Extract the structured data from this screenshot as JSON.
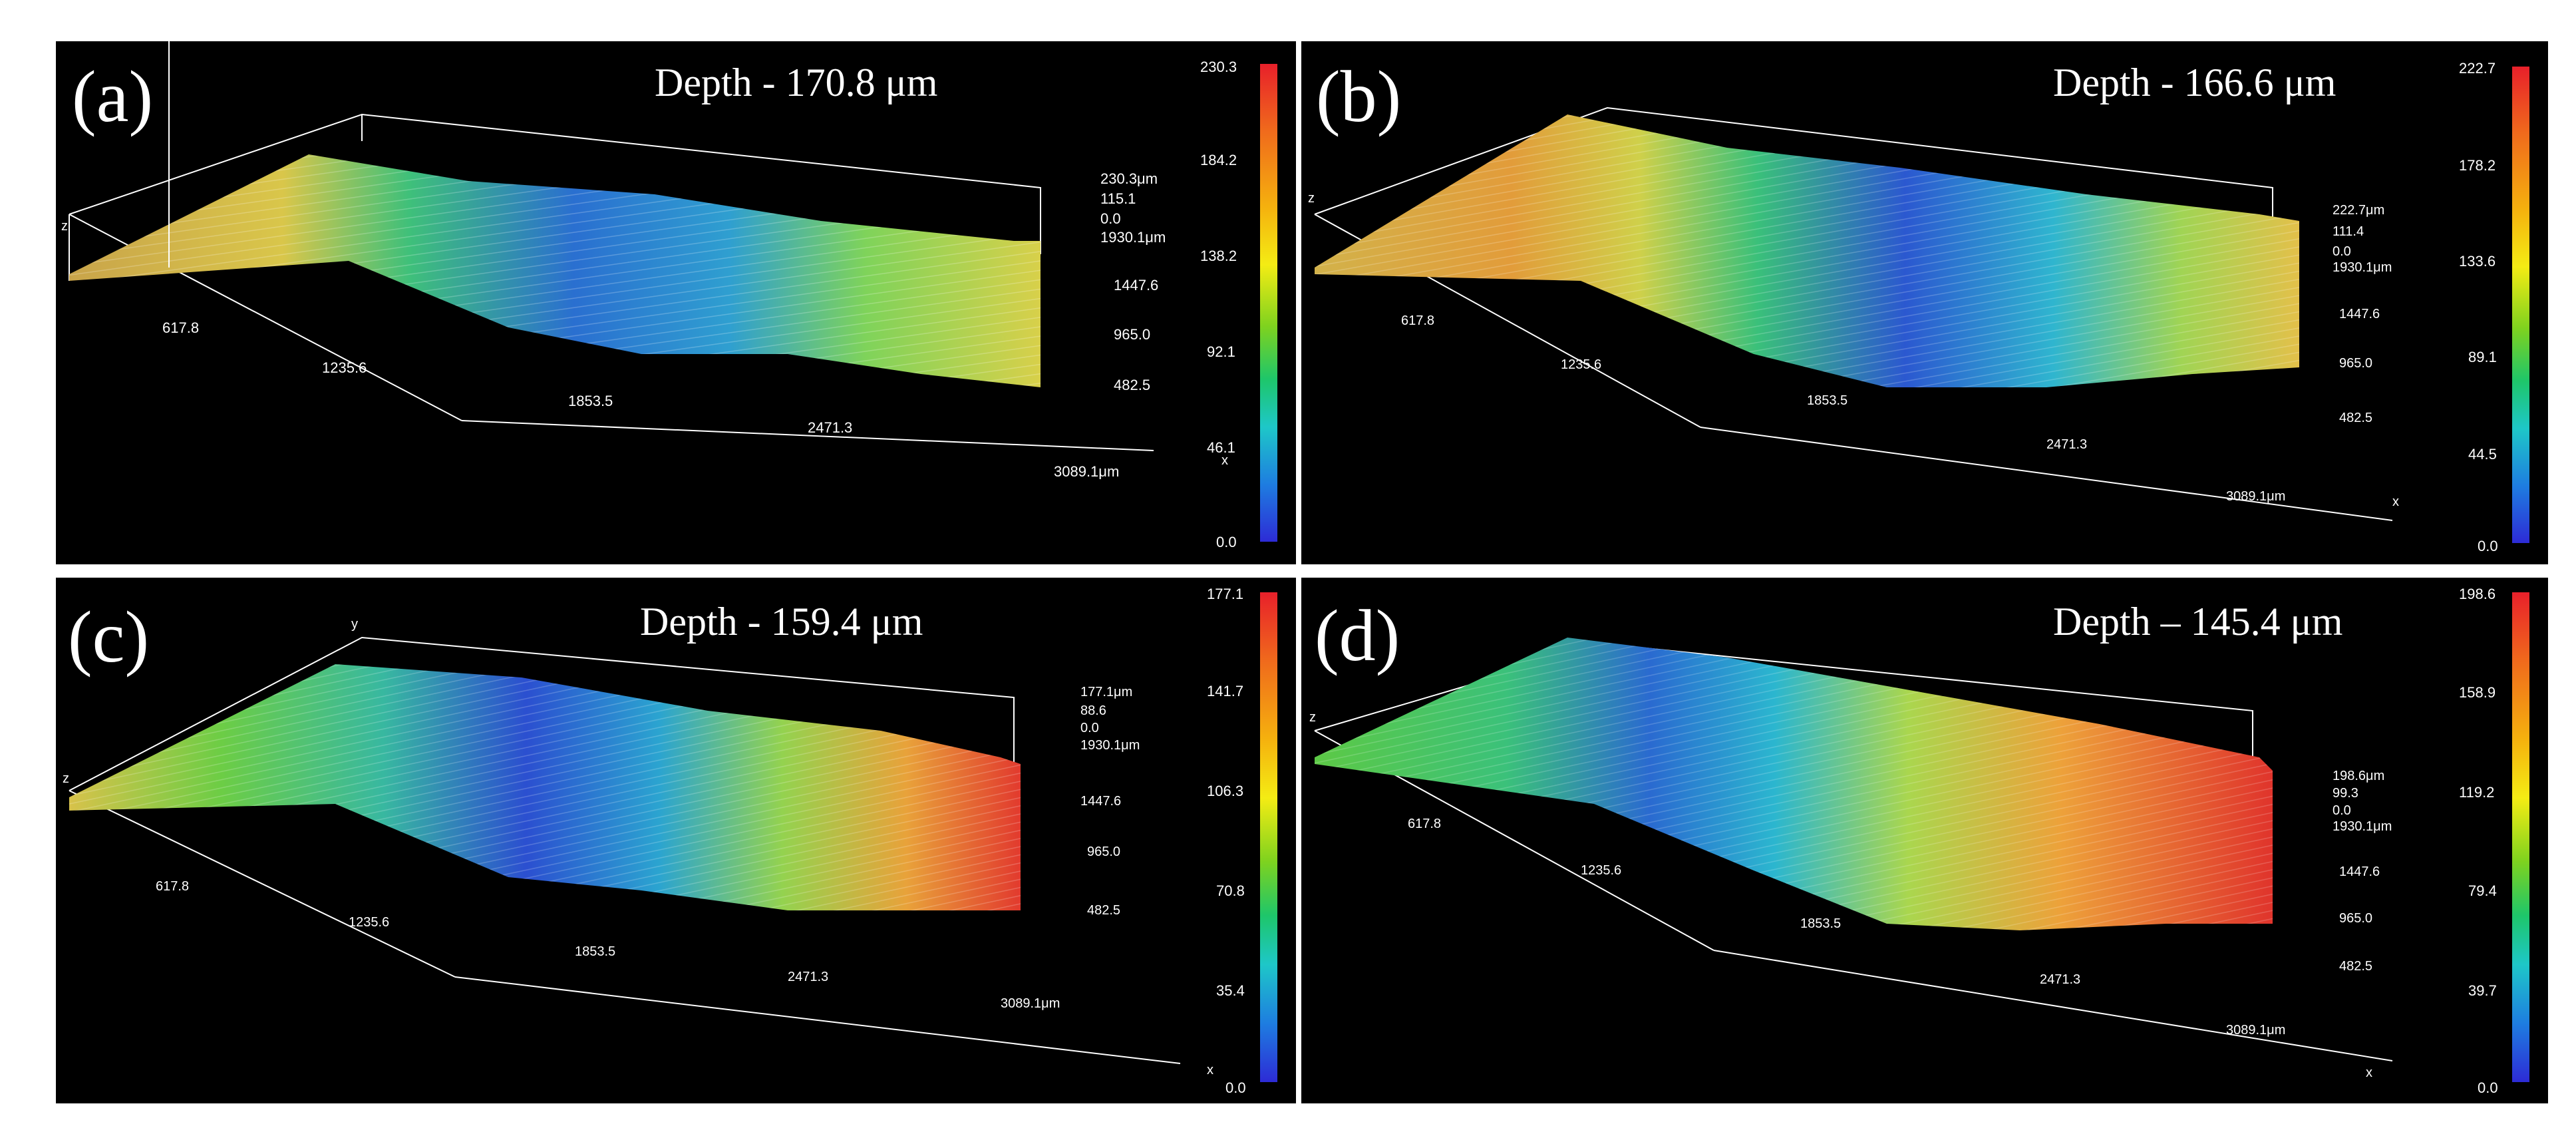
{
  "panels": {
    "a": {
      "label": "(a)",
      "depth": "Depth - 170.8 μm",
      "x_ticks": [
        "617.8",
        "1235.6",
        "1853.5",
        "2471.3",
        "3089.1μm"
      ],
      "y_ticks": [
        "1930.1μm",
        "1447.6",
        "965.0",
        "482.5"
      ],
      "z_ticks": [
        "230.3μm",
        "115.1",
        "0.0"
      ],
      "z_axis": "z",
      "x_axis": "x",
      "colorbar": [
        "230.3",
        "184.2",
        "138.2",
        "92.1",
        "46.1",
        "0.0"
      ]
    },
    "b": {
      "label": "(b)",
      "depth": "Depth - 166.6 μm",
      "x_ticks": [
        "617.8",
        "1235.6",
        "1853.5",
        "2471.3",
        "3089.1μm"
      ],
      "y_ticks": [
        "1930.1μm",
        "1447.6",
        "965.0",
        "482.5"
      ],
      "z_ticks": [
        "222.7μm",
        "111.4",
        "0.0"
      ],
      "z_axis": "z",
      "x_axis": "x",
      "colorbar": [
        "222.7",
        "178.2",
        "133.6",
        "89.1",
        "44.5",
        "0.0"
      ]
    },
    "c": {
      "label": "(c)",
      "depth": "Depth - 159.4 μm",
      "x_ticks": [
        "617.8",
        "1235.6",
        "1853.5",
        "2471.3",
        "3089.1μm"
      ],
      "y_ticks": [
        "1930.1μm",
        "1447.6",
        "965.0",
        "482.5"
      ],
      "z_ticks": [
        "177.1μm",
        "88.6",
        "0.0"
      ],
      "z_axis": "z",
      "x_axis": "x",
      "y_axis": "y",
      "colorbar": [
        "177.1",
        "141.7",
        "106.3",
        "70.8",
        "35.4",
        "0.0"
      ]
    },
    "d": {
      "label": "(d)",
      "depth": "Depth – 145.4 μm",
      "x_ticks": [
        "617.8",
        "1235.6",
        "1853.5",
        "2471.3",
        "3089.1μm"
      ],
      "y_ticks": [
        "1930.1μm",
        "1447.6",
        "965.0",
        "482.5"
      ],
      "z_ticks": [
        "198.6μm",
        "99.3",
        "0.0"
      ],
      "z_axis": "z",
      "x_axis": "x",
      "colorbar": [
        "198.6",
        "158.9",
        "119.2",
        "79.4",
        "39.7",
        "0.0"
      ]
    }
  }
}
